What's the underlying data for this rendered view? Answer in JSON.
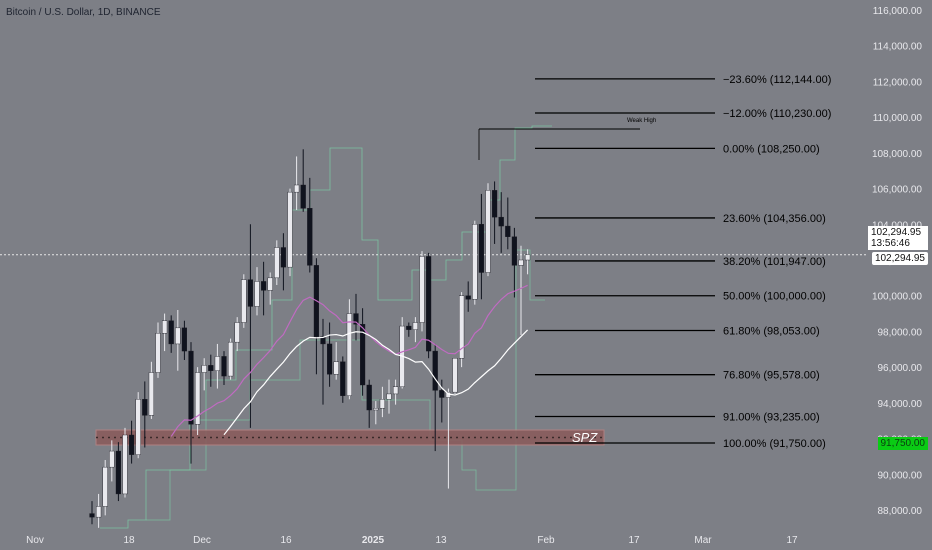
{
  "header": {
    "title": "Bitcoin / U.S. Dollar, 1D, BINANCE"
  },
  "colors": {
    "background": "#7d7f86",
    "candle_up": "#e9e9ee",
    "candle_down": "#10131e",
    "fib_line": "#000000",
    "ema_pink": "#c06bc2",
    "sma_white": "#ffffff",
    "channel_green": "#7cc9a4",
    "zone_fill": "#8a5a5a",
    "zone_border": "#b98282",
    "last_price_bg": "#0acb14",
    "current_price_bg": "#ffffff"
  },
  "price_axis": {
    "labels": [
      "116,000.00",
      "114,000.00",
      "112,000.00",
      "110,000.00",
      "108,000.00",
      "106,000.00",
      "104,000.00",
      "102,000.00",
      "100,000.00",
      "98,000.00",
      "96,000.00",
      "94,000.00",
      "92,000.00",
      "90,000.00",
      "88,000.00"
    ],
    "current_price": "102,294.95",
    "bar_countdown": "13:56:46",
    "current_price_repeat": "102,294.95",
    "swing_low_price": "91,750.00"
  },
  "time_axis": {
    "labels": [
      "Nov",
      "18",
      "Dec",
      "16",
      "2025",
      "13",
      "Feb",
      "17",
      "Mar",
      "17"
    ]
  },
  "fib_levels": [
    {
      "label": "−23.60% (112,144.00)",
      "price": 112144
    },
    {
      "label": "−12.00% (110,230.00)",
      "price": 110230
    },
    {
      "label": "0.00% (108,250.00)",
      "price": 108250
    },
    {
      "label": "23.60% (104,356.00)",
      "price": 104356
    },
    {
      "label": "38.20% (101,947.00)",
      "price": 101947
    },
    {
      "label": "50.00% (100,000.00)",
      "price": 100000
    },
    {
      "label": "61.80% (98,053.00)",
      "price": 98053
    },
    {
      "label": "76.80% (95,578.00)",
      "price": 95578
    },
    {
      "label": "91.00% (93,235.00)",
      "price": 93235
    },
    {
      "label": "100.00% (91,750.00)",
      "price": 91750
    }
  ],
  "annotations": {
    "weak_high": "Weak High",
    "zone_label": "SPZ"
  },
  "chart_data": {
    "type": "candlestick",
    "title": "Bitcoin / U.S. Dollar, 1D, BINANCE",
    "ylim": [
      87000,
      116500
    ],
    "x_dates": [
      "Nov",
      "18",
      "Dec",
      "16",
      "2025",
      "13",
      "Feb",
      "17",
      "Mar",
      "17"
    ],
    "candles": [
      [
        87800,
        88500,
        87200,
        87600
      ],
      [
        87600,
        88900,
        87000,
        88200
      ],
      [
        88200,
        90800,
        87700,
        90400
      ],
      [
        90400,
        91900,
        89600,
        91300
      ],
      [
        91300,
        91800,
        88500,
        88900
      ],
      [
        88900,
        92600,
        88700,
        92200
      ],
      [
        92200,
        93000,
        90600,
        91100
      ],
      [
        91100,
        94600,
        90900,
        94200
      ],
      [
        94200,
        95200,
        91500,
        93300
      ],
      [
        93300,
        96300,
        93100,
        95700
      ],
      [
        95700,
        98500,
        95400,
        97900
      ],
      [
        97900,
        99000,
        96900,
        98600
      ],
      [
        98600,
        98900,
        96800,
        97300
      ],
      [
        97300,
        99200,
        95800,
        98200
      ],
      [
        98200,
        98600,
        96400,
        96900
      ],
      [
        96900,
        97400,
        90600,
        92800
      ],
      [
        92800,
        96000,
        92200,
        95700
      ],
      [
        95700,
        96500,
        94700,
        96100
      ],
      [
        96100,
        96700,
        94900,
        95800
      ],
      [
        95800,
        97300,
        94800,
        96600
      ],
      [
        96600,
        96900,
        95000,
        95500
      ],
      [
        95500,
        97600,
        95300,
        97400
      ],
      [
        97400,
        98800,
        96900,
        98500
      ],
      [
        98500,
        101200,
        98200,
        100900
      ],
      [
        100900,
        104000,
        92600,
        99400
      ],
      [
        99400,
        101600,
        98900,
        100800
      ],
      [
        100800,
        101900,
        98900,
        100300
      ],
      [
        100300,
        101300,
        99500,
        101000
      ],
      [
        101000,
        103100,
        100600,
        102700
      ],
      [
        102700,
        103500,
        100300,
        101600
      ],
      [
        101600,
        106000,
        101100,
        105800
      ],
      [
        105800,
        107800,
        104800,
        106200
      ],
      [
        106200,
        108200,
        104700,
        104900
      ],
      [
        104900,
        106600,
        101300,
        101700
      ],
      [
        101700,
        102100,
        95600,
        97700
      ],
      [
        97700,
        98700,
        93900,
        97300
      ],
      [
        97300,
        98500,
        94900,
        95600
      ],
      [
        95600,
        97400,
        95300,
        96300
      ],
      [
        96300,
        96600,
        94000,
        94400
      ],
      [
        94400,
        99800,
        94200,
        99000
      ],
      [
        99000,
        100100,
        97500,
        98400
      ],
      [
        98400,
        99300,
        94400,
        95000
      ],
      [
        95000,
        95300,
        92600,
        93600
      ],
      [
        93600,
        94100,
        92800,
        93700
      ],
      [
        93700,
        94900,
        93200,
        94200
      ],
      [
        94200,
        95300,
        93400,
        94500
      ],
      [
        94500,
        95300,
        93900,
        94900
      ],
      [
        94900,
        98800,
        94800,
        98300
      ],
      [
        98300,
        98500,
        97700,
        98100
      ],
      [
        98100,
        98800,
        97400,
        98500
      ],
      [
        98500,
        102500,
        98000,
        102200
      ],
      [
        102200,
        102400,
        96500,
        96900
      ],
      [
        96900,
        97300,
        91300,
        94700
      ],
      [
        94700,
        95300,
        92900,
        94300
      ],
      [
        94300,
        94800,
        89200,
        94600
      ],
      [
        94600,
        96500,
        94500,
        96500
      ],
      [
        96500,
        100200,
        96000,
        100000
      ],
      [
        100000,
        100800,
        99100,
        99800
      ],
      [
        99800,
        104200,
        99500,
        104000
      ],
      [
        104000,
        105700,
        99800,
        101300
      ],
      [
        101300,
        106300,
        101100,
        105900
      ],
      [
        105900,
        106400,
        102900,
        104400
      ],
      [
        104400,
        105800,
        102400,
        103900
      ],
      [
        103900,
        105500,
        102600,
        103300
      ],
      [
        103300,
        103800,
        99900,
        101700
      ],
      [
        101700,
        102800,
        97800,
        102000
      ],
      [
        102000,
        102600,
        101200,
        102295
      ]
    ],
    "series": [
      {
        "name": "",
        "values": "EMA (pink line)"
      },
      {
        "name": "",
        "values": "SMA (white line)"
      }
    ]
  }
}
